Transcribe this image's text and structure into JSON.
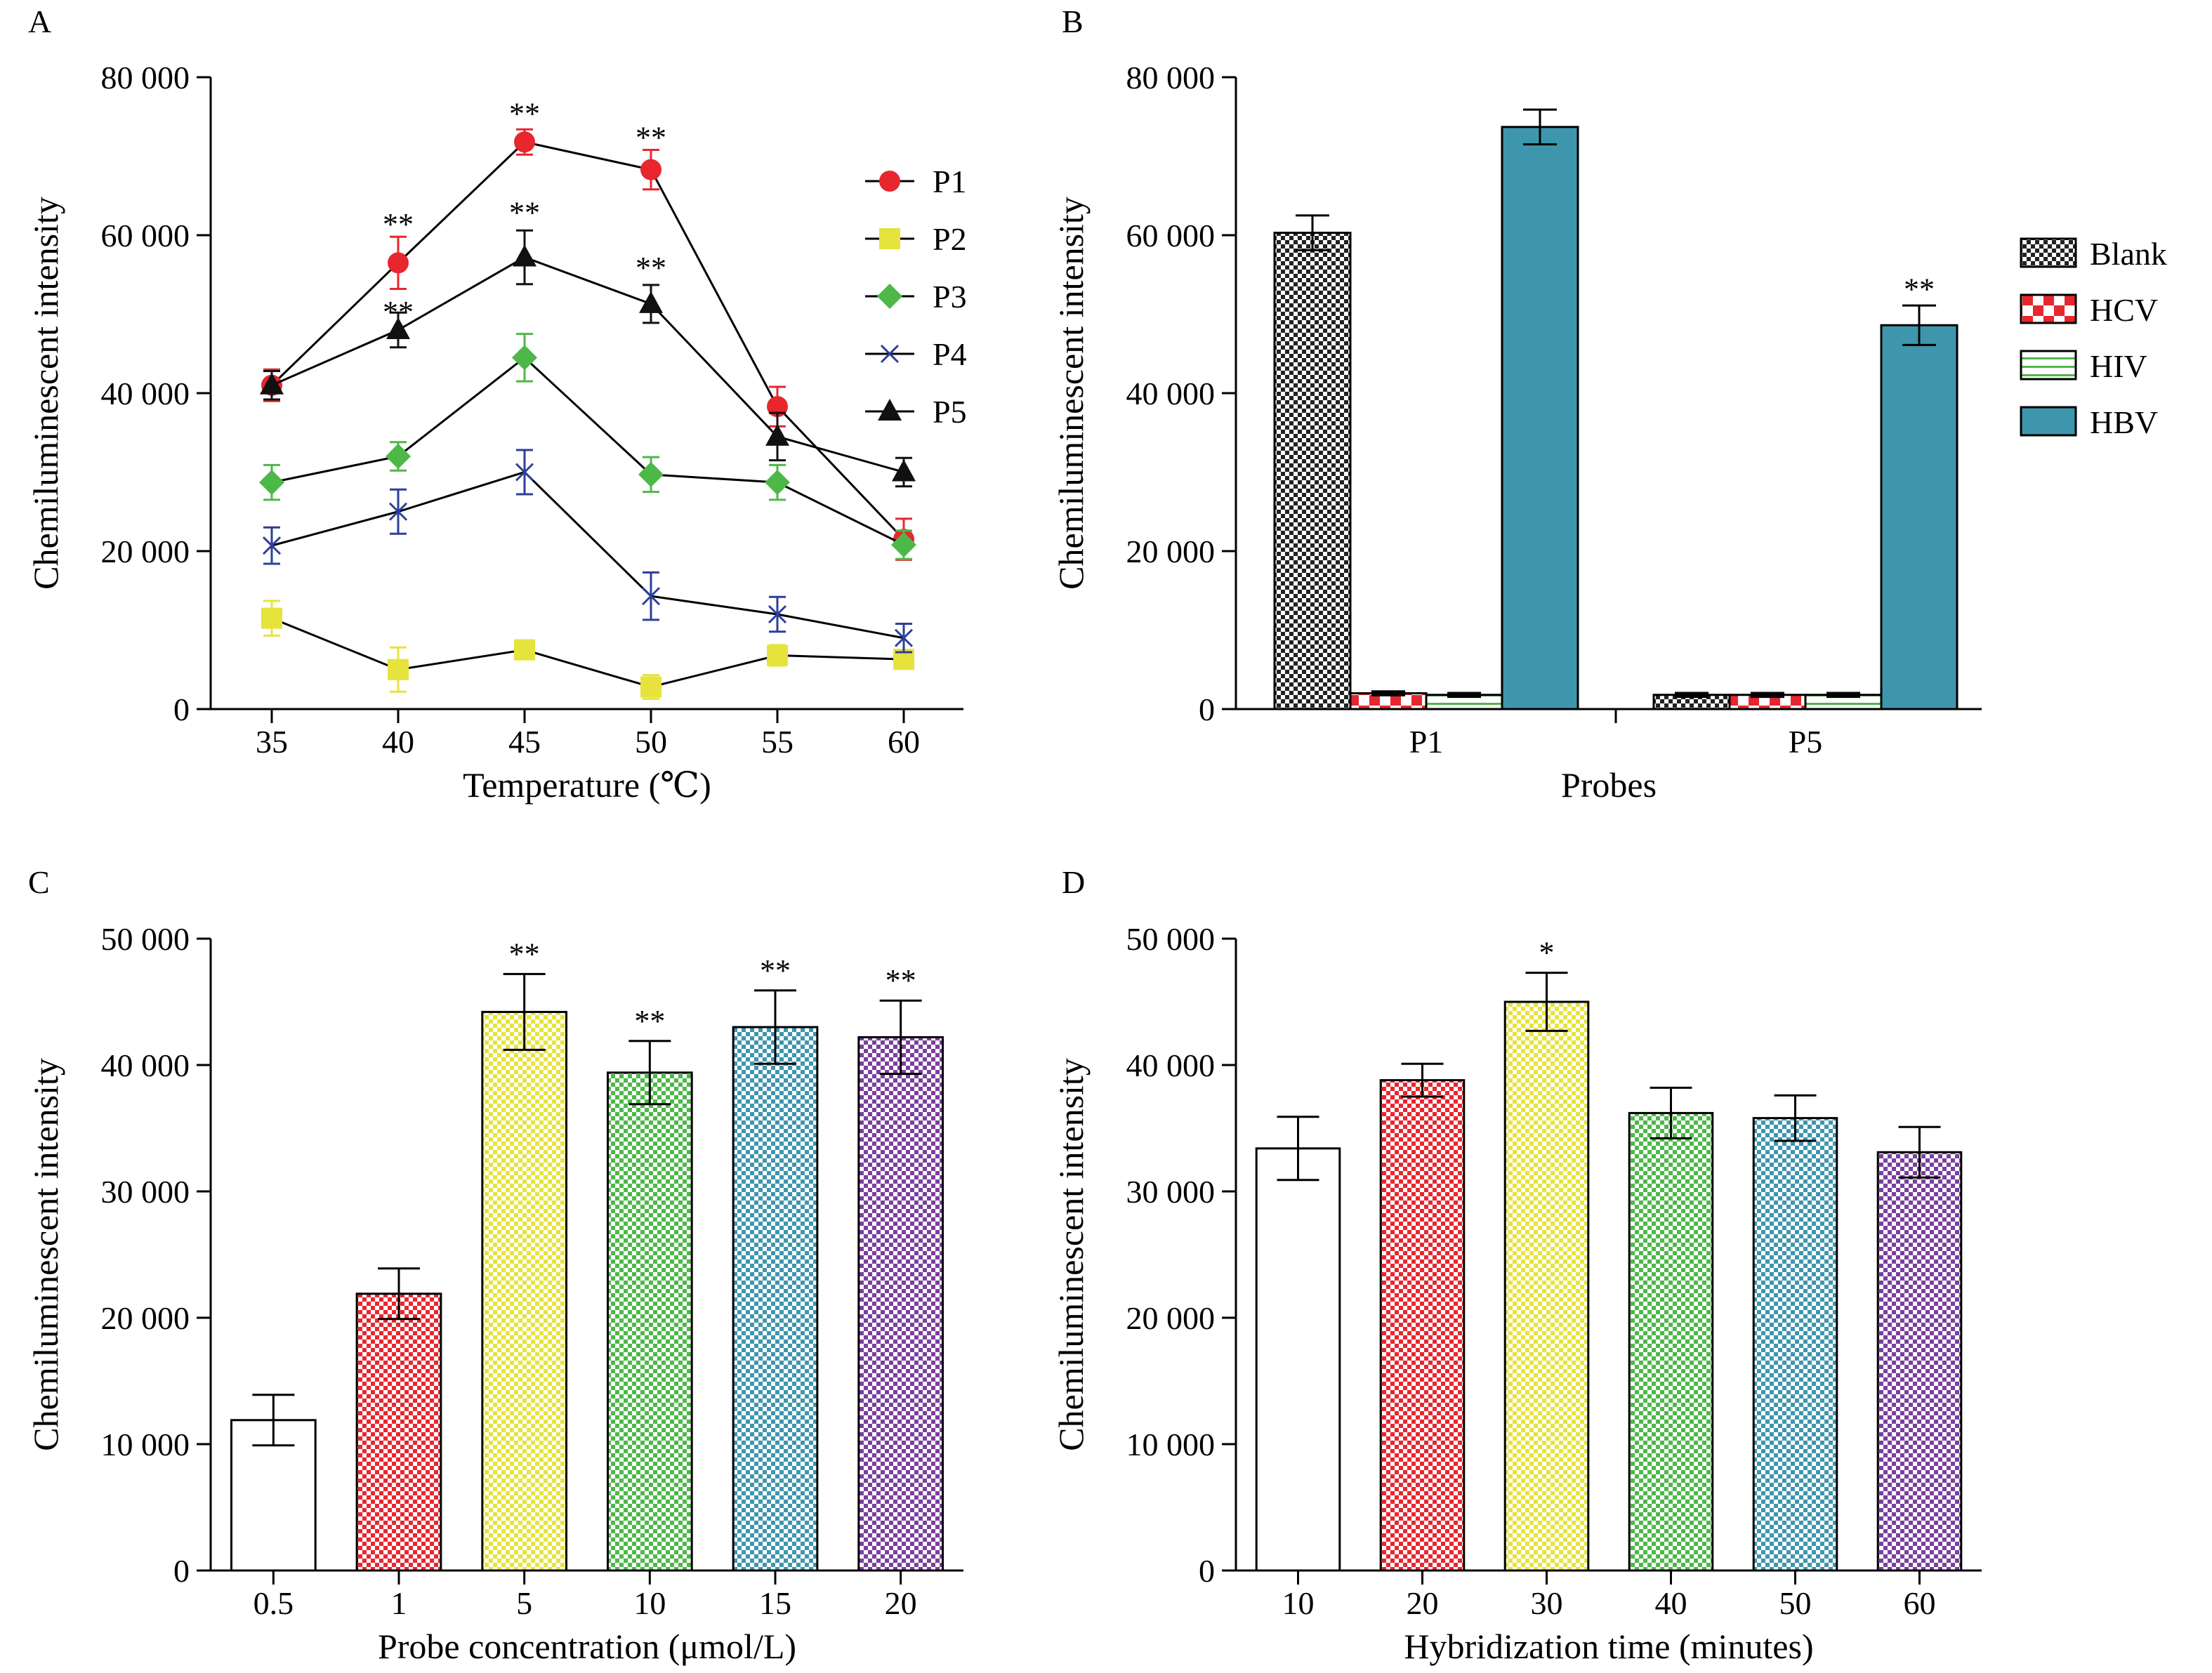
{
  "chart_data": [
    {
      "panel": "A",
      "type": "line",
      "xlabel": "Temperature (℃)",
      "ylabel": "Chemiluminescent intensity",
      "x": [
        35,
        40,
        45,
        50,
        55,
        60
      ],
      "xticklabels": [
        "35",
        "40",
        "45",
        "50",
        "55",
        "60"
      ],
      "ylim": [
        0,
        80000
      ],
      "yticks": [
        0,
        20000,
        40000,
        60000,
        80000
      ],
      "yticklabels": [
        "0",
        "20 000",
        "40 000",
        "60 000",
        "80 000"
      ],
      "legend_position": "top-right",
      "series": [
        {
          "name": "P1",
          "values": [
            41000,
            56500,
            71800,
            68300,
            38300,
            21500
          ],
          "errors": [
            2000,
            3300,
            1600,
            2500,
            2500,
            2600
          ],
          "marker": "circle",
          "color": "#e8262e"
        },
        {
          "name": "P2",
          "values": [
            11500,
            5000,
            7500,
            2800,
            6800,
            6300
          ],
          "errors": [
            2200,
            2800,
            1200,
            1500,
            1300,
            1200
          ],
          "marker": "square",
          "color": "#e6e33c"
        },
        {
          "name": "P3",
          "values": [
            28700,
            32000,
            44500,
            29700,
            28700,
            20800
          ],
          "errors": [
            2200,
            1800,
            3000,
            2200,
            2200,
            1800
          ],
          "marker": "diamond",
          "color": "#4db848"
        },
        {
          "name": "P4",
          "values": [
            20700,
            25000,
            30000,
            14300,
            12000,
            9000
          ],
          "errors": [
            2300,
            2800,
            2800,
            3000,
            2200,
            1800
          ],
          "marker": "x",
          "color": "#2d3e9a"
        },
        {
          "name": "P5",
          "values": [
            41000,
            48000,
            57200,
            51300,
            34500,
            30000
          ],
          "errors": [
            1800,
            2200,
            3400,
            2400,
            3000,
            1800
          ],
          "marker": "triangle",
          "color": "#111111"
        }
      ],
      "annotations": [
        {
          "x": 40,
          "y": 61500,
          "text": "**"
        },
        {
          "x": 40,
          "y": 50400,
          "text": "**"
        },
        {
          "x": 45,
          "y": 75500,
          "text": "**"
        },
        {
          "x": 45,
          "y": 63000,
          "text": "**"
        },
        {
          "x": 50,
          "y": 72500,
          "text": "**"
        },
        {
          "x": 50,
          "y": 56000,
          "text": "**"
        }
      ]
    },
    {
      "panel": "B",
      "type": "bar",
      "xlabel": "Probes",
      "ylabel": "Chemiluminescent intensity",
      "categories": [
        "P1",
        "P5"
      ],
      "ylim": [
        0,
        80000
      ],
      "yticks": [
        0,
        20000,
        40000,
        60000,
        80000
      ],
      "yticklabels": [
        "0",
        "20 000",
        "40 000",
        "60 000",
        "80 000"
      ],
      "legend_position": "right",
      "series": [
        {
          "name": "Blank",
          "values": [
            60300,
            1800
          ],
          "errors": [
            2200,
            250
          ],
          "pattern": "fine-checker",
          "color": "#222222"
        },
        {
          "name": "HCV",
          "values": [
            2000,
            1800
          ],
          "errors": [
            250,
            250
          ],
          "pattern": "red-checker",
          "color": "#e8262e"
        },
        {
          "name": "HIV",
          "values": [
            1800,
            1800
          ],
          "errors": [
            250,
            250
          ],
          "pattern": "green-hlines",
          "color": "#4db848"
        },
        {
          "name": "HBV",
          "values": [
            73700,
            48600
          ],
          "errors": [
            2200,
            2500
          ],
          "pattern": "solid",
          "color": "#3e96ad"
        }
      ],
      "annotations": [
        {
          "category": "P5",
          "series": "HBV",
          "y": 53300,
          "text": "**"
        }
      ]
    },
    {
      "panel": "C",
      "type": "bar",
      "xlabel": "Probe concentration (μmol/L)",
      "ylabel": "Chemiluminescent intensity",
      "categories": [
        "0.5",
        "1",
        "5",
        "10",
        "15",
        "20"
      ],
      "values": [
        11900,
        21900,
        44200,
        39400,
        43000,
        42200
      ],
      "errors": [
        2000,
        2000,
        3000,
        2500,
        2900,
        2900
      ],
      "colors": [
        "#ffffff",
        "#e8262e",
        "#e6e33c",
        "#4db848",
        "#3e96ad",
        "#7b3f9e"
      ],
      "ylim": [
        0,
        50000
      ],
      "yticks": [
        0,
        10000,
        20000,
        30000,
        40000,
        50000
      ],
      "yticklabels": [
        "0",
        "10 000",
        "20 000",
        "30 000",
        "40 000",
        "50 000"
      ],
      "annotations": [
        {
          "category": "5",
          "text": "**"
        },
        {
          "category": "10",
          "text": "**"
        },
        {
          "category": "15",
          "text": "**"
        },
        {
          "category": "20",
          "text": "**"
        }
      ]
    },
    {
      "panel": "D",
      "type": "bar",
      "xlabel": "Hybridization time (minutes)",
      "ylabel": "Chemiluminescent intensity",
      "categories": [
        "10",
        "20",
        "30",
        "40",
        "50",
        "60"
      ],
      "values": [
        33400,
        38800,
        45000,
        36200,
        35800,
        33100
      ],
      "errors": [
        2500,
        1300,
        2300,
        2000,
        1800,
        2000
      ],
      "colors": [
        "#ffffff",
        "#e8262e",
        "#e6e33c",
        "#4db848",
        "#3e96ad",
        "#7b3f9e"
      ],
      "ylim": [
        0,
        50000
      ],
      "yticks": [
        0,
        10000,
        20000,
        30000,
        40000,
        50000
      ],
      "yticklabels": [
        "0",
        "10 000",
        "20 000",
        "30 000",
        "40 000",
        "50 000"
      ],
      "annotations": [
        {
          "category": "30",
          "text": "*"
        }
      ]
    }
  ]
}
